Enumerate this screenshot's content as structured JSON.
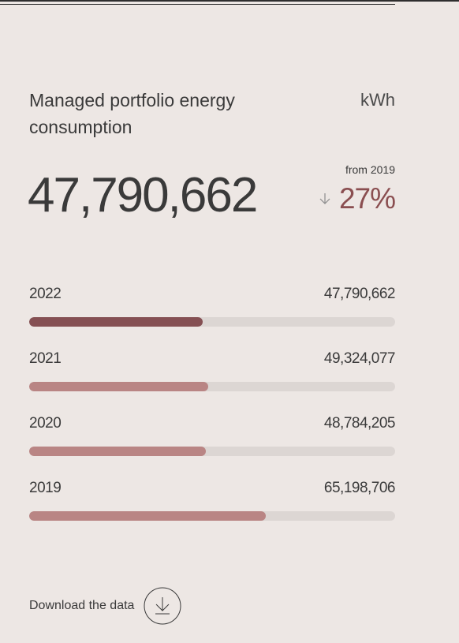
{
  "header": {
    "title": "Managed portfolio energy consumption",
    "unit": "kWh"
  },
  "headline": {
    "value": "47,790,662",
    "from_label": "from 2019",
    "change": "27%",
    "change_direction": "down",
    "change_color": "#8a4e50"
  },
  "chart_data": {
    "type": "bar",
    "orientation": "horizontal",
    "title": "Managed portfolio energy consumption",
    "unit": "kWh",
    "categories": [
      "2022",
      "2021",
      "2020",
      "2019"
    ],
    "values": [
      47790662,
      49324077,
      48784205,
      65198706
    ],
    "value_labels": [
      "47,790,662",
      "49,324,077",
      "48,784,205",
      "65,198,706"
    ],
    "xlim": [
      0,
      101000000
    ],
    "colors": [
      "#855053",
      "#b98584",
      "#b98584",
      "#b98584"
    ],
    "track_color": "#dcd6d3"
  },
  "download": {
    "label": "Download the data",
    "icon": "download-icon"
  }
}
